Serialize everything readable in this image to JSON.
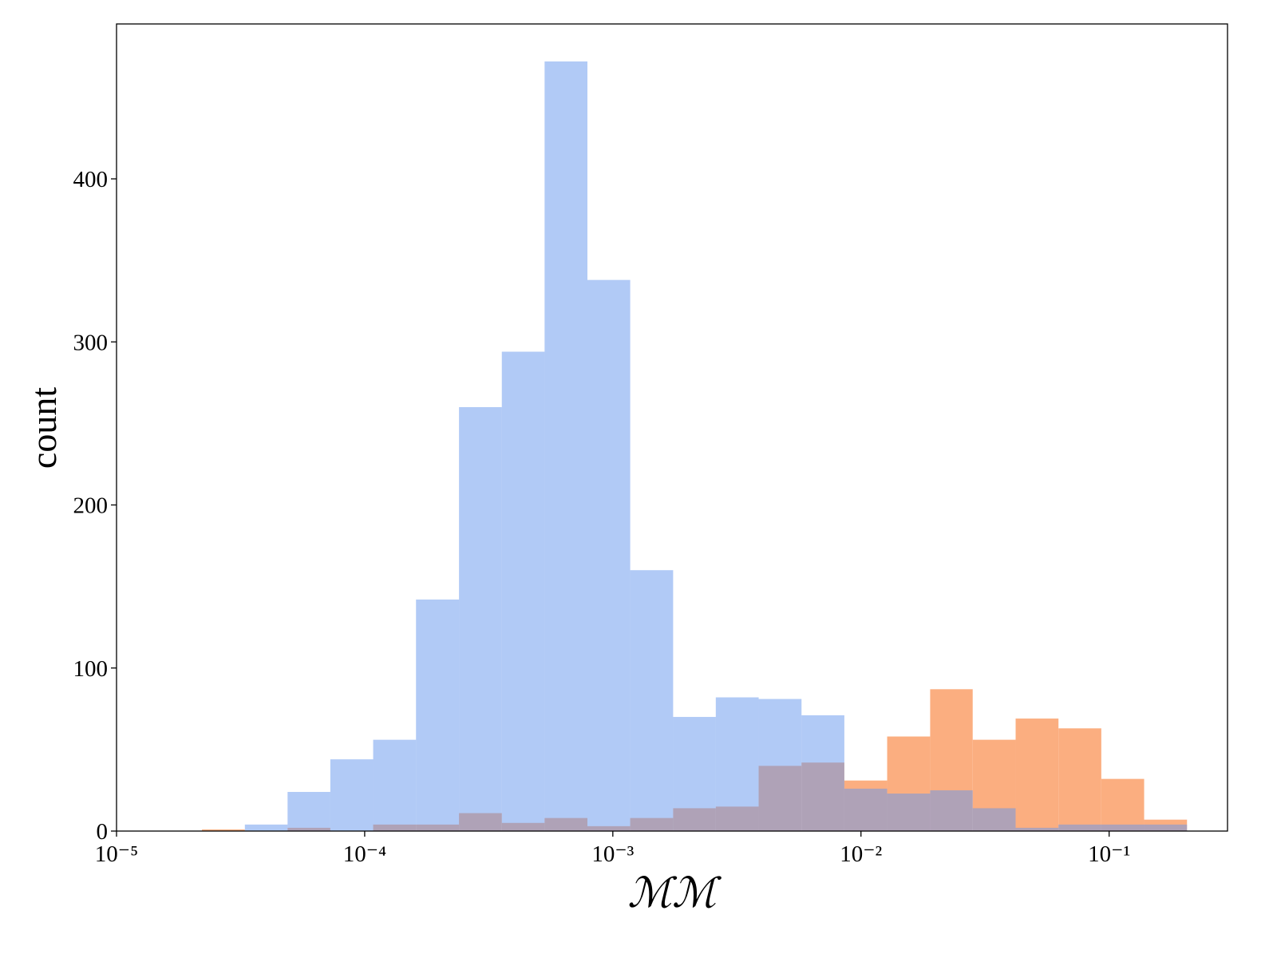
{
  "chart_data": {
    "type": "histogram",
    "x_label": "ℳℳ",
    "y_label": "count",
    "x_log": true,
    "bins": [
      2.21e-05,
      3.29e-05,
      4.89e-05,
      7.27e-05,
      0.0001082,
      0.000161,
      0.00024,
      0.000357,
      0.000531,
      0.00079,
      0.001175,
      0.00175,
      0.0026,
      0.00387,
      0.00576,
      0.00857,
      0.01275,
      0.019,
      0.0282,
      0.042,
      0.0625,
      0.093,
      0.1384,
      0.206
    ],
    "series": [
      {
        "color": "#fbae80",
        "values": [
          1,
          0,
          2,
          0,
          4,
          4,
          11,
          5,
          8,
          3,
          8,
          14,
          15,
          40,
          42,
          31,
          58,
          87,
          56,
          69,
          63,
          32,
          7
        ]
      },
      {
        "color": "#6495ed",
        "values": [
          0,
          4,
          24,
          44,
          56,
          142,
          260,
          294,
          472,
          338,
          160,
          70,
          82,
          81,
          71,
          26,
          23,
          25,
          14,
          2,
          4,
          4,
          4
        ]
      }
    ],
    "xlim": [
      1e-05,
      0.3
    ],
    "xticks": [
      {
        "value": 1e-05,
        "label": "10⁻⁵"
      },
      {
        "value": 0.0001,
        "label": "10⁻⁴"
      },
      {
        "value": 0.001,
        "label": "10⁻³"
      },
      {
        "value": 0.01,
        "label": "10⁻²"
      },
      {
        "value": 0.1,
        "label": "10⁻¹"
      }
    ],
    "ylim": [
      0,
      495
    ],
    "yticks": [
      0,
      100,
      200,
      300,
      400
    ]
  }
}
